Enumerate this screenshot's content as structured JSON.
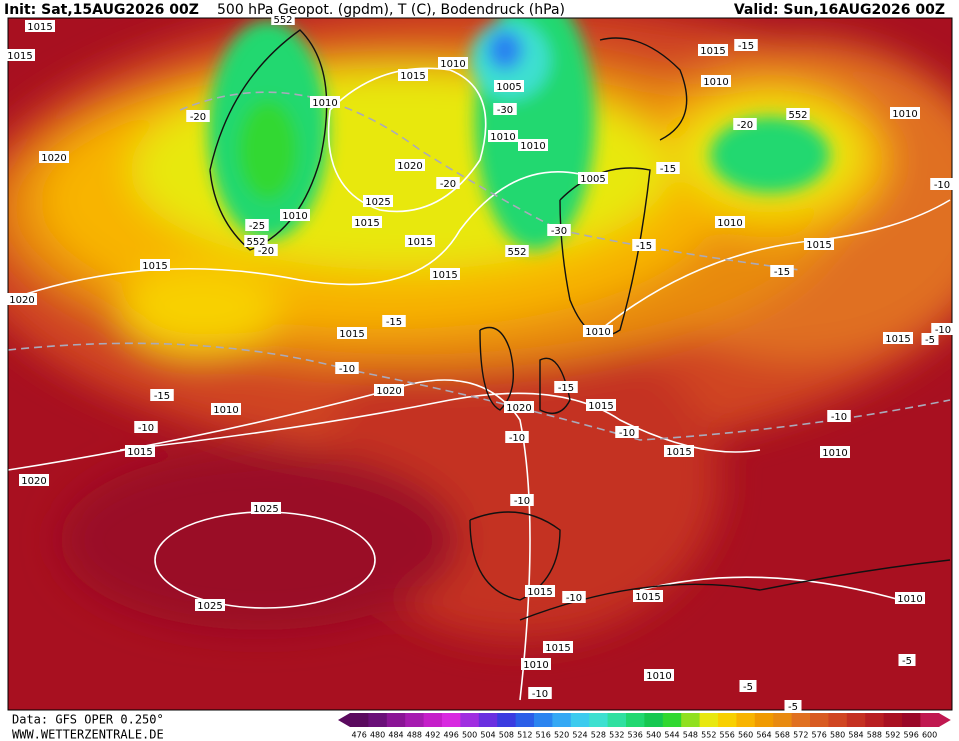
{
  "header": {
    "init": "Init: Sat,15AUG2026 00Z",
    "title": "500 hPa Geopot. (gpdm), T (C), Bodendruck (hPa)",
    "valid": "Valid: Sun,16AUG2026 00Z"
  },
  "footer": {
    "data": "Data: GFS OPER 0.250°",
    "site": "WWW.WETTERZENTRALE.DE"
  },
  "colorbar": {
    "labels": [
      "476",
      "480",
      "484",
      "488",
      "492",
      "496",
      "500",
      "504",
      "508",
      "512",
      "516",
      "520",
      "524",
      "528",
      "532",
      "536",
      "540",
      "544",
      "548",
      "552",
      "556",
      "560",
      "564",
      "568",
      "572",
      "576",
      "580",
      "584",
      "588",
      "592",
      "596",
      "600"
    ],
    "colors": [
      "#5a0a5e",
      "#6a0f78",
      "#8a1495",
      "#a61bb0",
      "#c51ec9",
      "#d829e0",
      "#a02ee0",
      "#6a2fe0",
      "#3a3be0",
      "#2a5ee8",
      "#2a84f0",
      "#34a8f4",
      "#3ccbee",
      "#3de0d0",
      "#2fe0a0",
      "#20d870",
      "#15c850",
      "#30d830",
      "#90e020",
      "#e8e810",
      "#f8d000",
      "#f8b400",
      "#f09a00",
      "#e88a10",
      "#e07020",
      "#d85a20",
      "#d04520",
      "#c43020",
      "#b81e20",
      "#a81020",
      "#9a0828",
      "#c01850"
    ]
  },
  "map": {
    "isobar_labels": [
      "1015",
      "1015",
      "1010",
      "1015",
      "1010",
      "1005",
      "1010",
      "1010",
      "1020",
      "1020",
      "1025",
      "1015",
      "1010",
      "1005",
      "1015",
      "1015",
      "1015",
      "1020",
      "1015",
      "1010",
      "1015",
      "1010",
      "1010",
      "1010",
      "1015",
      "1015",
      "1020",
      "1010",
      "1020",
      "1015",
      "1015",
      "1015",
      "1010",
      "1020",
      "1025",
      "1025",
      "1015",
      "1015",
      "1010",
      "1015",
      "1010",
      "1010"
    ],
    "temperature_labels": [
      "-15",
      "-20",
      "-30",
      "-20",
      "-15",
      "-10",
      "-20",
      "-25",
      "-20",
      "-30",
      "-15",
      "-15",
      "-15",
      "-10",
      "-5",
      "-10",
      "-15",
      "-15",
      "-10",
      "-10",
      "-10",
      "-10",
      "-10",
      "-10",
      "-5",
      "-10",
      "-5",
      "-5"
    ],
    "height_labels": [
      "552",
      "552",
      "552",
      "552"
    ]
  }
}
